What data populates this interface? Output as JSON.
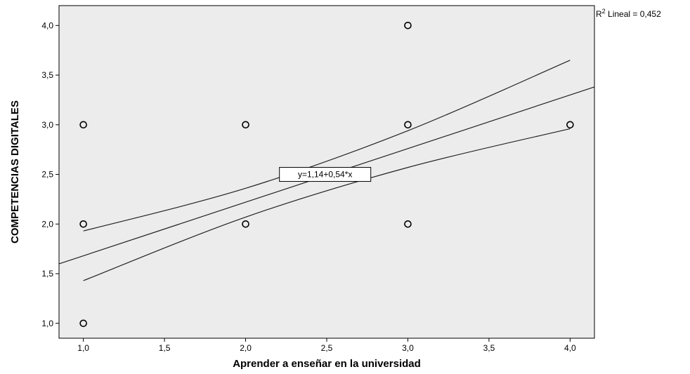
{
  "chart_data": {
    "type": "scatter",
    "title": "",
    "xlabel": "Aprender a enseñar en la universidad",
    "ylabel": "COMPETENCIAS DIGITALES",
    "xlim": [
      0.85,
      4.15
    ],
    "ylim": [
      0.85,
      4.2
    ],
    "x_ticks": [
      1.0,
      1.5,
      2.0,
      2.5,
      3.0,
      3.5,
      4.0
    ],
    "y_ticks": [
      1.0,
      1.5,
      2.0,
      2.5,
      3.0,
      3.5,
      4.0
    ],
    "x_tick_labels": [
      "1,0",
      "1,5",
      "2,0",
      "2,5",
      "3,0",
      "3,5",
      "4,0"
    ],
    "y_tick_labels": [
      "1,0",
      "1,5",
      "2,0",
      "2,5",
      "3,0",
      "3,5",
      "4,0"
    ],
    "grid": false,
    "plot_background": "#ececec",
    "marker": "open-circle",
    "points": [
      {
        "x": 1,
        "y": 1
      },
      {
        "x": 1,
        "y": 2
      },
      {
        "x": 1,
        "y": 3
      },
      {
        "x": 2,
        "y": 2
      },
      {
        "x": 2,
        "y": 3
      },
      {
        "x": 3,
        "y": 2
      },
      {
        "x": 3,
        "y": 3
      },
      {
        "x": 3,
        "y": 4
      },
      {
        "x": 4,
        "y": 3
      }
    ],
    "fit_line": {
      "intercept": 1.14,
      "slope": 0.54,
      "x_range": [
        0.85,
        4.15
      ]
    },
    "confidence_upper": [
      [
        1.0,
        1.93
      ],
      [
        2.0,
        2.36
      ],
      [
        3.0,
        2.94
      ],
      [
        4.0,
        3.65
      ]
    ],
    "confidence_lower": [
      [
        1.0,
        1.43
      ],
      [
        2.0,
        2.07
      ],
      [
        3.0,
        2.57
      ],
      [
        4.0,
        2.96
      ]
    ],
    "equation_label": "y=1,14+0,54*x",
    "r2_label": "R² Lineal = 0,452"
  }
}
